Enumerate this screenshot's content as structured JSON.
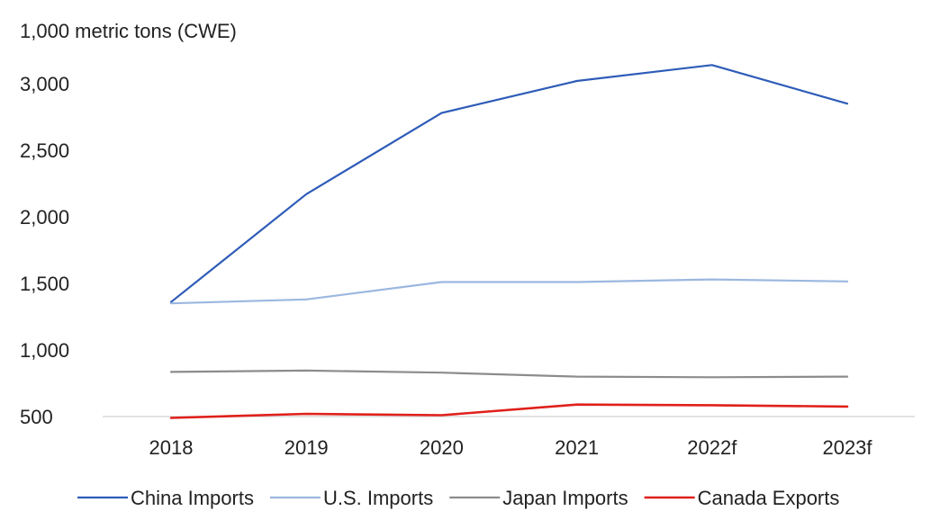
{
  "chart_data": {
    "type": "line",
    "title": "",
    "ylabel": "1,000 metric tons (CWE)",
    "xlabel": "",
    "categories": [
      "2018",
      "2019",
      "2020",
      "2021",
      "2022f",
      "2023f"
    ],
    "ylim": [
      500,
      3000
    ],
    "yticks": [
      500,
      1000,
      1500,
      2000,
      2500,
      3000
    ],
    "ytick_labels": [
      "500",
      "1,000",
      "1,500",
      "2,000",
      "2,500",
      "3,000"
    ],
    "grid": false,
    "legend_position": "bottom",
    "series": [
      {
        "name": "China Imports",
        "color": "#2e5cb8",
        "values": [
          1360,
          2170,
          2780,
          3020,
          3140,
          2850
        ]
      },
      {
        "name": "U.S. Imports",
        "color": "#9bb7e0",
        "values": [
          1350,
          1380,
          1510,
          1510,
          1530,
          1515
        ]
      },
      {
        "name": "Japan Imports",
        "color": "#8c8c8c",
        "values": [
          835,
          845,
          830,
          800,
          795,
          800
        ]
      },
      {
        "name": "Canada Exports",
        "color": "#e0201b",
        "values": [
          490,
          520,
          510,
          590,
          585,
          575
        ]
      }
    ]
  }
}
